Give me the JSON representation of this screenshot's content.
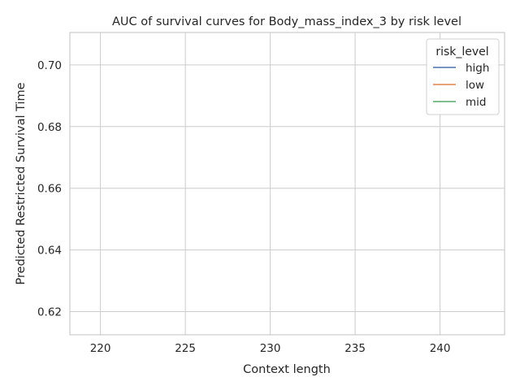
{
  "chart_data": {
    "type": "line",
    "title": "AUC of survival curves for Body_mass_index_3 by risk level",
    "xlabel": "Context length",
    "ylabel": "Predicted Restricted Survival Time",
    "xlim": [
      218.2,
      243.8
    ],
    "ylim": [
      0.6125,
      0.7105
    ],
    "xticks": [
      220,
      225,
      230,
      235,
      240
    ],
    "xtick_labels": [
      "220",
      "225",
      "230",
      "235",
      "240"
    ],
    "yticks": [
      0.62,
      0.64,
      0.66,
      0.68,
      0.7
    ],
    "ytick_labels": [
      "0.62",
      "0.64",
      "0.66",
      "0.68",
      "0.70"
    ],
    "grid": true,
    "legend": {
      "title": "risk_level",
      "placement": "top-right",
      "entries": [
        "high",
        "low",
        "mid"
      ]
    },
    "series": [
      {
        "name": "high",
        "color": "#4c72b0",
        "x": [],
        "y": []
      },
      {
        "name": "low",
        "color": "#dd8452",
        "x": [],
        "y": []
      },
      {
        "name": "mid",
        "color": "#55a868",
        "x": [],
        "y": []
      }
    ]
  }
}
